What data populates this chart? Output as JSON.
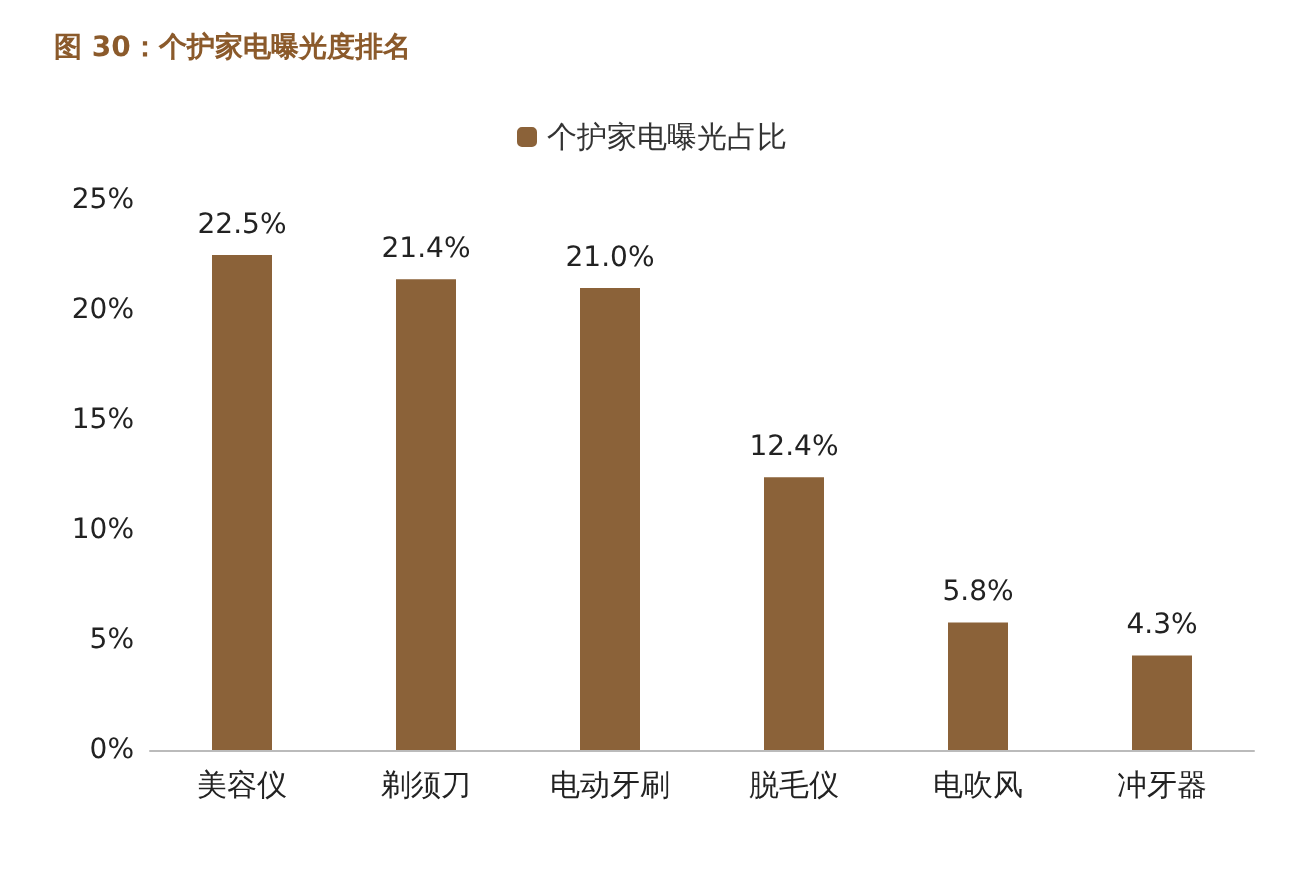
{
  "chart_data": {
    "type": "bar",
    "title": "图 30：个护家电曝光度排名",
    "categories": [
      "美容仪",
      "剃须刀",
      "电动牙刷",
      "脱毛仪",
      "电吹风",
      "冲牙器"
    ],
    "series": [
      {
        "name": "个护家电曝光占比",
        "color": "#8b6239",
        "values": [
          22.5,
          21.4,
          21.0,
          12.4,
          5.8,
          4.3
        ],
        "value_labels": [
          "22.5%",
          "21.4%",
          "21.0%",
          "12.4%",
          "5.8%",
          "4.3%"
        ]
      }
    ],
    "ylim": [
      0,
      25
    ],
    "yticks": [
      {
        "value": 0,
        "label": "0%"
      },
      {
        "value": 5,
        "label": "5%"
      },
      {
        "value": 10,
        "label": "10%"
      },
      {
        "value": 15,
        "label": "15%"
      },
      {
        "value": 20,
        "label": "20%"
      },
      {
        "value": 25,
        "label": "25%"
      }
    ],
    "grid": false,
    "legend": "top"
  }
}
